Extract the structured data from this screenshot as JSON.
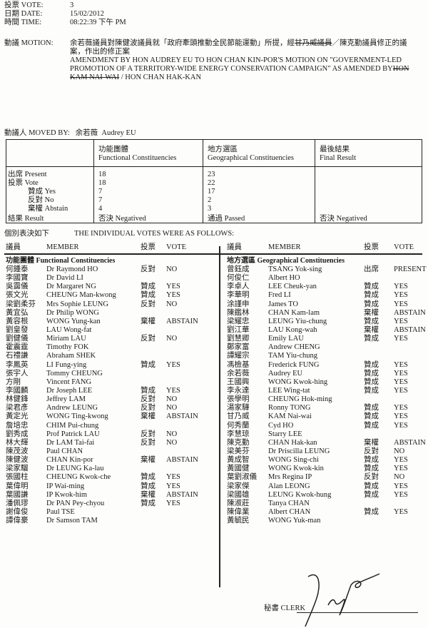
{
  "header": {
    "vote_label": "投票 VOTE:",
    "vote_value": "3",
    "date_label": "日期 DATE:",
    "date_value": "15/02/2012",
    "time_label": "時間 TIME:",
    "time_value": "08:22:39 下午 PM"
  },
  "motion": {
    "label": "動議 MOTION:",
    "zh_part1": "余若薇議員對陳健波議員就「政府牽頭推動全民節能運動」所提，經",
    "zh_struck": "甘乃威議員",
    "zh_part2": "／陳克勤議員修正的議",
    "zh_line2": "案，作出的修正案",
    "en_line1": "AMENDMENT BY HON AUDREY EU TO HON CHAN KIN-POR'S MOTION ON \"GOVERNMENT-LED",
    "en_line2": "PROMOTION OF A TERRITORY-WIDE ENERGY CONSERVATION CAMPAIGN\" AS AMENDED BY",
    "en_struck1": "HON",
    "en_struck2": "KAM NAI-WAI",
    "en_line3": " / HON CHAN HAK-KAN"
  },
  "moved_by": {
    "label": "動議人 MOVED BY:",
    "zh": "余若薇",
    "en": "Audrey EU"
  },
  "summary": {
    "columns": [
      {
        "zh": "功能團體",
        "en": "Functional Constituencies"
      },
      {
        "zh": "地方選區",
        "en": "Geographical Constituencies"
      },
      {
        "zh": "最後結果",
        "en": "Final Result"
      }
    ],
    "rows": [
      {
        "label": "出席 Present",
        "fc": "18",
        "gc": "23",
        "final": ""
      },
      {
        "label": "投票 Vote",
        "fc": "18",
        "gc": "22",
        "final": ""
      },
      {
        "label": "贊成 Yes",
        "fc": "7",
        "gc": "17",
        "final": ""
      },
      {
        "label": "反對 No",
        "fc": "7",
        "gc": "2",
        "final": ""
      },
      {
        "label": "棄權 Abstain",
        "fc": "4",
        "gc": "3",
        "final": ""
      },
      {
        "label": "結果 Result",
        "fc": "否決 Negatived",
        "gc": "通過 Passed",
        "final": "否決 Negatived"
      }
    ]
  },
  "individual": {
    "zh": "個別表決如下",
    "en": "THE INDIVIDUAL VOTES WERE AS FOLLOWS:"
  },
  "list_headers": {
    "zh_member": "議員",
    "member": "MEMBER",
    "zh_vote": "投票",
    "vote": "VOTE"
  },
  "functional": {
    "title": "功能團體 Functional Constituencies",
    "members": [
      [
        "何鍾泰",
        "Dr Raymond HO",
        "反對",
        "NO"
      ],
      [
        "李國寶",
        "Dr David LI",
        "",
        ""
      ],
      [
        "吳靄儀",
        "Dr Margaret NG",
        "贊成",
        "YES"
      ],
      [
        "張文光",
        "CHEUNG Man-kwong",
        "贊成",
        "YES"
      ],
      [
        "梁劉柔芬",
        "Mrs Sophie LEUNG",
        "反對",
        "NO"
      ],
      [
        "黃宜弘",
        "Dr Philip WONG",
        "",
        ""
      ],
      [
        "黃容根",
        "WONG Yung-kan",
        "棄權",
        "ABSTAIN"
      ],
      [
        "劉皇發",
        "LAU Wong-fat",
        "",
        ""
      ],
      [
        "劉健儀",
        "Miriam LAU",
        "反對",
        "NO"
      ],
      [
        "霍震霆",
        "Timothy FOK",
        "",
        ""
      ],
      [
        "石禮謙",
        "Abraham SHEK",
        "",
        ""
      ],
      [
        "李鳳英",
        "LI Fung-ying",
        "贊成",
        "YES"
      ],
      [
        "張宇人",
        "Tommy CHEUNG",
        "",
        ""
      ],
      [
        "方剛",
        "Vincent FANG",
        "",
        ""
      ],
      [
        "李國麟",
        "Dr Joseph LEE",
        "贊成",
        "YES"
      ],
      [
        "林健鋒",
        "Jeffrey LAM",
        "反對",
        "NO"
      ],
      [
        "梁君彥",
        "Andrew LEUNG",
        "反對",
        "NO"
      ],
      [
        "黃定光",
        "WONG Ting-kwong",
        "棄權",
        "ABSTAIN"
      ],
      [
        "詹培忠",
        "CHIM Pui-chung",
        "",
        ""
      ],
      [
        "劉秀成",
        "Prof Patrick LAU",
        "反對",
        "NO"
      ],
      [
        "林大輝",
        "Dr LAM Tai-fai",
        "反對",
        "NO"
      ],
      [
        "陳茂波",
        "Paul CHAN",
        "",
        ""
      ],
      [
        "陳健波",
        "CHAN Kin-por",
        "棄權",
        "ABSTAIN"
      ],
      [
        "梁家騮",
        "Dr LEUNG Ka-lau",
        "",
        ""
      ],
      [
        "張國柱",
        "CHEUNG Kwok-che",
        "贊成",
        "YES"
      ],
      [
        "葉偉明",
        "IP Wai-ming",
        "贊成",
        "YES"
      ],
      [
        "葉國謙",
        "IP Kwok-him",
        "棄權",
        "ABSTAIN"
      ],
      [
        "潘佩璆",
        "Dr PAN Pey-chyou",
        "贊成",
        "YES"
      ],
      [
        "謝偉俊",
        "Paul TSE",
        "",
        ""
      ],
      [
        "譚偉豪",
        "Dr Samson TAM",
        "",
        ""
      ]
    ]
  },
  "geographical": {
    "title": "地方選區 Geographical Constituencies",
    "members": [
      [
        "曾鈺成",
        "TSANG Yok-sing",
        "出席",
        "PRESENT"
      ],
      [
        "何俊仁",
        "Albert HO",
        "",
        ""
      ],
      [
        "李卓人",
        "LEE Cheuk-yan",
        "贊成",
        "YES"
      ],
      [
        "李華明",
        "Fred LI",
        "贊成",
        "YES"
      ],
      [
        "涂謹申",
        "James TO",
        "贊成",
        "YES"
      ],
      [
        "陳鑑林",
        "CHAN Kam-lam",
        "棄權",
        "ABSTAIN"
      ],
      [
        "梁耀忠",
        "LEUNG Yiu-chung",
        "贊成",
        "YES"
      ],
      [
        "劉江華",
        "LAU Kong-wah",
        "棄權",
        "ABSTAIN"
      ],
      [
        "劉慧卿",
        "Emily LAU",
        "贊成",
        "YES"
      ],
      [
        "鄭家富",
        "Andrew CHENG",
        "",
        ""
      ],
      [
        "譚耀宗",
        "TAM Yiu-chung",
        "",
        ""
      ],
      [
        "馮檢基",
        "Frederick FUNG",
        "贊成",
        "YES"
      ],
      [
        "余若薇",
        "Audrey EU",
        "贊成",
        "YES"
      ],
      [
        "王國興",
        "WONG Kwok-hing",
        "贊成",
        "YES"
      ],
      [
        "李永達",
        "LEE Wing-tat",
        "贊成",
        "YES"
      ],
      [
        "張學明",
        "CHEUNG Hok-ming",
        "",
        ""
      ],
      [
        "湯家驊",
        "Ronny TONG",
        "贊成",
        "YES"
      ],
      [
        "甘乃威",
        "KAM Nai-wai",
        "贊成",
        "YES"
      ],
      [
        "何秀蘭",
        "Cyd HO",
        "贊成",
        "YES"
      ],
      [
        "李慧琼",
        "Starry LEE",
        "",
        ""
      ],
      [
        "陳克勤",
        "CHAN Hak-kan",
        "棄權",
        "ABSTAIN"
      ],
      [
        "梁美芬",
        "Dr Priscilla LEUNG",
        "反對",
        "NO"
      ],
      [
        "黃成智",
        "WONG Sing-chi",
        "贊成",
        "YES"
      ],
      [
        "黃國健",
        "WONG Kwok-kin",
        "贊成",
        "YES"
      ],
      [
        "葉劉淑儀",
        "Mrs Regina IP",
        "反對",
        "NO"
      ],
      [
        "梁家傑",
        "Alan LEONG",
        "贊成",
        "YES"
      ],
      [
        "梁國雄",
        "LEUNG Kwok-hung",
        "贊成",
        "YES"
      ],
      [
        "陳淑莊",
        "Tanya CHAN",
        "",
        ""
      ],
      [
        "陳偉業",
        "Albert CHAN",
        "贊成",
        "YES"
      ],
      [
        "黃毓民",
        "WONG Yuk-man",
        "",
        ""
      ]
    ]
  },
  "footer": {
    "clerk_label": "秘書 CLERK",
    "signature": "clerk signature"
  }
}
